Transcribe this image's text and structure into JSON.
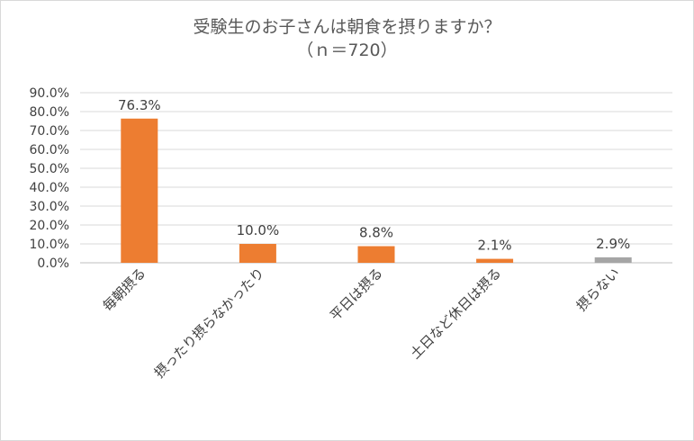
{
  "chart_data": {
    "type": "bar",
    "title": "受験生のお子さんは朝食を摂りますか？",
    "subtitle": "（ｎ＝720）",
    "categories": [
      "毎朝摂る",
      "摂ったり摂らなかったり",
      "平日は摂る",
      "土日など休日は摂る",
      "摂らない"
    ],
    "values": [
      76.3,
      10.0,
      8.8,
      2.1,
      2.9
    ],
    "data_labels": [
      "76.3%",
      "10.0%",
      "8.8%",
      "2.1%",
      "2.9%"
    ],
    "bar_colors": [
      "#ed7d31",
      "#ed7d31",
      "#ed7d31",
      "#ed7d31",
      "#a5a5a5"
    ],
    "ylim": [
      0,
      90
    ],
    "ytick_labels": [
      "0.0%",
      "10.0%",
      "20.0%",
      "30.0%",
      "40.0%",
      "50.0%",
      "60.0%",
      "70.0%",
      "80.0%",
      "90.0%"
    ],
    "grid": true,
    "xlabel": "",
    "ylabel": ""
  }
}
